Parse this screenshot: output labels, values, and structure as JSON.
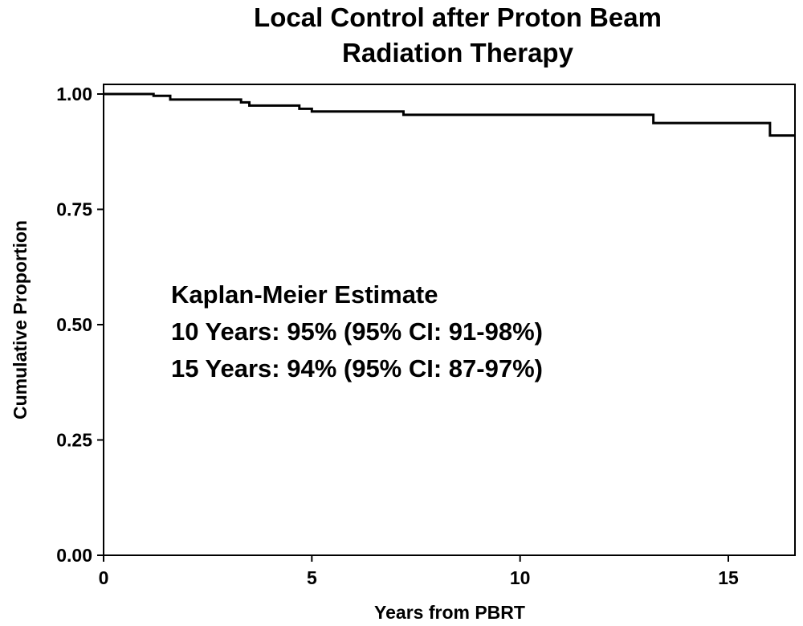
{
  "chart_data": {
    "type": "line",
    "title_lines": [
      "Local Control after Proton Beam",
      "Radiation Therapy"
    ],
    "xlabel": "Years from PBRT",
    "ylabel": "Cumulative Proportion",
    "xlim": [
      0,
      16.6
    ],
    "ylim": [
      0,
      1.0
    ],
    "x_ticks": [
      {
        "value": 0,
        "label": "0"
      },
      {
        "value": 5,
        "label": "5"
      },
      {
        "value": 10,
        "label": "10"
      },
      {
        "value": 15,
        "label": "15"
      }
    ],
    "y_ticks": [
      {
        "value": 0.0,
        "label": "0.00"
      },
      {
        "value": 0.25,
        "label": "0.25"
      },
      {
        "value": 0.5,
        "label": "0.50"
      },
      {
        "value": 0.75,
        "label": "0.75"
      },
      {
        "value": 1.0,
        "label": "1.00"
      }
    ],
    "grid": false,
    "series": [
      {
        "step": true,
        "x": [
          0,
          1.2,
          1.6,
          3.3,
          3.5,
          4.7,
          5.0,
          7.2,
          13.2,
          16.0,
          16.6
        ],
        "y": [
          1.0,
          0.996,
          0.988,
          0.982,
          0.975,
          0.968,
          0.962,
          0.955,
          0.937,
          0.91,
          0.91
        ]
      }
    ],
    "annotations": [
      "Kaplan-Meier Estimate",
      "10 Years: 95% (95% CI: 91-98%)",
      "15 Years: 94% (95% CI: 87-97%)"
    ]
  }
}
